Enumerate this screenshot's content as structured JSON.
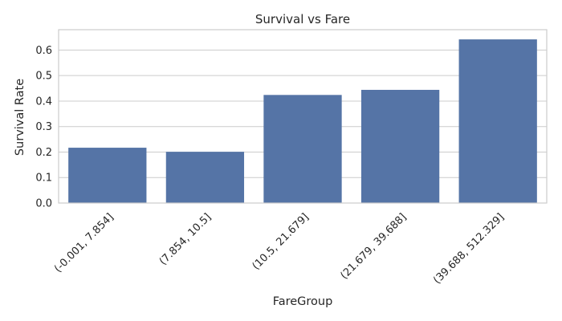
{
  "chart_data": {
    "type": "bar",
    "title": "Survival vs Fare",
    "xlabel": "FareGroup",
    "ylabel": "Survival Rate",
    "categories": [
      "(-0.001, 7.854]",
      "(7.854, 10.5]",
      "(10.5, 21.679]",
      "(21.679, 39.688]",
      "(39.688, 512.329]"
    ],
    "values": [
      0.217,
      0.201,
      0.424,
      0.444,
      0.642
    ],
    "ylim": [
      0,
      0.68
    ],
    "yticks": [
      "0.0",
      "0.1",
      "0.2",
      "0.3",
      "0.4",
      "0.5",
      "0.6"
    ],
    "grid": true,
    "legend": "none",
    "bar_color": "#5574a6"
  }
}
